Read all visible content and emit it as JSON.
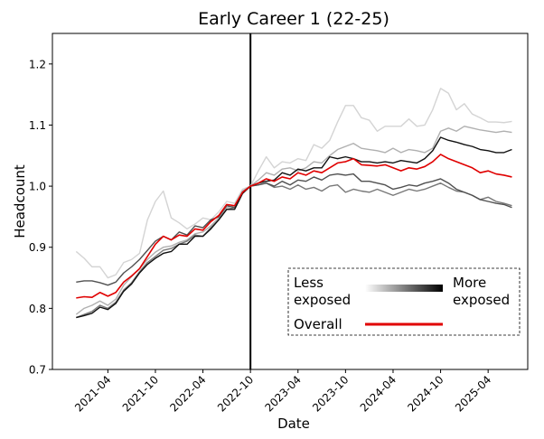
{
  "chart_data": {
    "type": "line",
    "title": "Early Career 1 (22-25)",
    "x_label": "Date",
    "y_label": "Headcount",
    "x": [
      "2020-12",
      "2021-01",
      "2021-02",
      "2021-03",
      "2021-04",
      "2021-05",
      "2021-06",
      "2021-07",
      "2021-08",
      "2021-09",
      "2021-10",
      "2021-11",
      "2021-12",
      "2022-01",
      "2022-02",
      "2022-03",
      "2022-04",
      "2022-05",
      "2022-06",
      "2022-07",
      "2022-08",
      "2022-09",
      "2022-10",
      "2022-11",
      "2022-12",
      "2023-01",
      "2023-02",
      "2023-03",
      "2023-04",
      "2023-05",
      "2023-06",
      "2023-07",
      "2023-08",
      "2023-09",
      "2023-10",
      "2023-11",
      "2023-12",
      "2024-01",
      "2024-02",
      "2024-03",
      "2024-04",
      "2024-05",
      "2024-06",
      "2024-07",
      "2024-08",
      "2024-09",
      "2024-10",
      "2024-11",
      "2024-12",
      "2025-01",
      "2025-02",
      "2025-03",
      "2025-04",
      "2025-05",
      "2025-06",
      "2025-07"
    ],
    "xlim": [
      "2020-09",
      "2025-09"
    ],
    "xticks": [
      "2021-04",
      "2021-10",
      "2022-04",
      "2022-10",
      "2023-04",
      "2023-10",
      "2024-04",
      "2024-10",
      "2025-04"
    ],
    "ylim": [
      0.7,
      1.25
    ],
    "yticks": [
      0.7,
      0.8,
      0.9,
      {
        "value": 1,
        "label": "1.0"
      },
      1.1,
      1.2
    ],
    "grid": false,
    "vline": "2022-10",
    "series": [
      {
        "color": "#d4d4d4",
        "values": [
          0.893,
          0.882,
          0.868,
          0.868,
          0.85,
          0.855,
          0.875,
          0.88,
          0.89,
          0.945,
          0.975,
          0.992,
          0.948,
          0.94,
          0.93,
          0.938,
          0.948,
          0.945,
          0.958,
          0.975,
          0.972,
          0.995,
          1.0,
          1.025,
          1.048,
          1.03,
          1.04,
          1.038,
          1.045,
          1.042,
          1.068,
          1.062,
          1.075,
          1.105,
          1.132,
          1.132,
          1.112,
          1.108,
          1.09,
          1.098,
          1.098,
          1.098,
          1.11,
          1.098,
          1.1,
          1.125,
          1.16,
          1.152,
          1.125,
          1.135,
          1.118,
          1.112,
          1.105,
          1.105,
          1.104,
          1.106
        ]
      },
      {
        "color": "#b0b0b0",
        "values": [
          0.79,
          0.8,
          0.805,
          0.812,
          0.805,
          0.815,
          0.838,
          0.852,
          0.865,
          0.88,
          0.892,
          0.9,
          0.902,
          0.908,
          0.912,
          0.922,
          0.925,
          0.935,
          0.948,
          0.965,
          0.968,
          0.992,
          1.0,
          1.01,
          1.022,
          1.018,
          1.028,
          1.03,
          1.025,
          1.03,
          1.04,
          1.038,
          1.05,
          1.06,
          1.065,
          1.07,
          1.062,
          1.06,
          1.058,
          1.055,
          1.062,
          1.055,
          1.06,
          1.058,
          1.055,
          1.062,
          1.09,
          1.095,
          1.09,
          1.098,
          1.095,
          1.092,
          1.09,
          1.088,
          1.09,
          1.088
        ]
      },
      {
        "color": "#777777",
        "values": [
          0.785,
          0.79,
          0.795,
          0.805,
          0.8,
          0.81,
          0.83,
          0.842,
          0.86,
          0.875,
          0.885,
          0.895,
          0.898,
          0.905,
          0.91,
          0.92,
          0.918,
          0.932,
          0.945,
          0.962,
          0.965,
          0.99,
          1.0,
          1.002,
          1.005,
          0.998,
          1.0,
          0.995,
          1.002,
          0.995,
          0.998,
          0.992,
          1.0,
          1.002,
          0.99,
          0.995,
          0.992,
          0.99,
          0.995,
          0.99,
          0.985,
          0.99,
          0.995,
          0.992,
          0.995,
          1.0,
          1.005,
          0.998,
          0.992,
          0.99,
          0.985,
          0.978,
          0.982,
          0.975,
          0.972,
          0.968
        ]
      },
      {
        "color": "#505050",
        "values": [
          0.843,
          0.845,
          0.845,
          0.842,
          0.838,
          0.843,
          0.858,
          0.868,
          0.88,
          0.895,
          0.91,
          0.918,
          0.912,
          0.925,
          0.92,
          0.935,
          0.932,
          0.945,
          0.95,
          0.968,
          0.965,
          0.99,
          1.0,
          1.002,
          1.005,
          1.0,
          1.008,
          1.002,
          1.01,
          1.008,
          1.015,
          1.01,
          1.018,
          1.02,
          1.018,
          1.02,
          1.008,
          1.008,
          1.005,
          1.002,
          0.995,
          0.998,
          1.002,
          1.0,
          1.005,
          1.008,
          1.012,
          1.005,
          0.995,
          0.99,
          0.985,
          0.978,
          0.975,
          0.972,
          0.97,
          0.965
        ]
      },
      {
        "color": "#111111",
        "values": [
          0.785,
          0.788,
          0.792,
          0.802,
          0.798,
          0.808,
          0.828,
          0.84,
          0.858,
          0.872,
          0.882,
          0.89,
          0.893,
          0.905,
          0.905,
          0.918,
          0.918,
          0.93,
          0.945,
          0.962,
          0.962,
          0.988,
          1.0,
          1.005,
          1.008,
          1.01,
          1.022,
          1.018,
          1.028,
          1.025,
          1.03,
          1.03,
          1.048,
          1.045,
          1.048,
          1.045,
          1.04,
          1.04,
          1.038,
          1.04,
          1.038,
          1.042,
          1.04,
          1.038,
          1.045,
          1.058,
          1.08,
          1.075,
          1.072,
          1.068,
          1.065,
          1.06,
          1.058,
          1.055,
          1.055,
          1.06
        ]
      },
      {
        "name": "Overall",
        "color": "#e00000",
        "values": [
          0.817,
          0.819,
          0.818,
          0.826,
          0.82,
          0.826,
          0.843,
          0.853,
          0.865,
          0.885,
          0.905,
          0.918,
          0.912,
          0.92,
          0.918,
          0.93,
          0.928,
          0.942,
          0.952,
          0.97,
          0.968,
          0.99,
          1.0,
          1.005,
          1.012,
          1.008,
          1.015,
          1.012,
          1.022,
          1.018,
          1.025,
          1.022,
          1.03,
          1.038,
          1.04,
          1.045,
          1.035,
          1.034,
          1.033,
          1.035,
          1.03,
          1.025,
          1.03,
          1.028,
          1.032,
          1.04,
          1.052,
          1.045,
          1.04,
          1.035,
          1.03,
          1.022,
          1.025,
          1.02,
          1.018,
          1.015
        ]
      }
    ],
    "legend": {
      "low": [
        "Less",
        "exposed"
      ],
      "high": [
        "More",
        "exposed"
      ]
    }
  }
}
